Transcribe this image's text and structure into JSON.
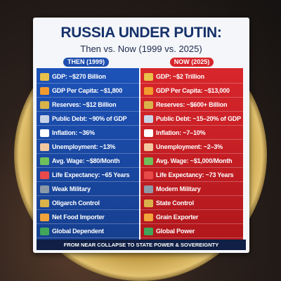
{
  "header": {
    "title": "RUSSIA UNDER PUTIN:",
    "subtitle": "Then vs. Now (1999 vs. 2025)"
  },
  "columns": [
    {
      "heading": "THEN (1999)",
      "rows": [
        "GDP: ~$270 Billion",
        "GDP Per Capita: ~$1,800",
        "Reserves: ~$12 Billion",
        "Public Debt: ~90% of GDP",
        "Inflation: ~36%",
        "Unemployment: ~13%",
        "Avg. Wage: ~$80/Month",
        "Life Expectancy: ~65 Years",
        "Weak Military",
        "Oligarch Control",
        "Net Food Importer",
        "Global Dependent"
      ]
    },
    {
      "heading": "NOW (2025)",
      "rows": [
        "GDP: ~$2 Trillion",
        "GDP Per Capita: ~$13,000",
        "Reserves: ~$600+ Billion",
        "Public Debt: ~15–20% of GDP",
        "Inflation: ~7–10%",
        "Unemployment: ~2–3%",
        "Avg. Wage: ~$1,000/Month",
        "Life Expectancy: ~73 Years",
        "Modern Military",
        "State Control",
        "Grain Exporter",
        "Global Power"
      ]
    }
  ],
  "footer": "FROM NEAR COLLAPSE TO STATE POWER & SOVEREIGNTY"
}
